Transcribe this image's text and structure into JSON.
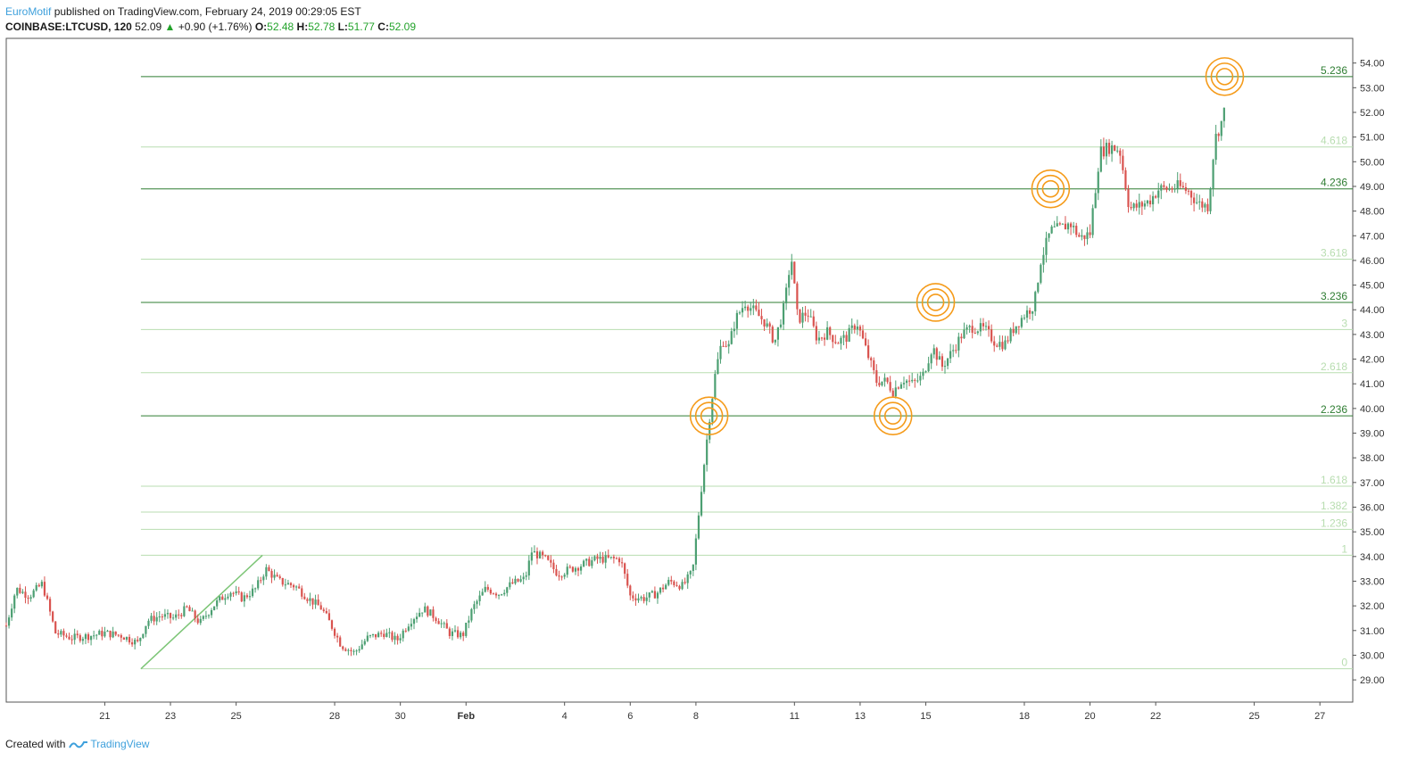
{
  "header": {
    "author": "EuroMotif",
    "published_text": " published on TradingView.com, February 24, 2019 00:29:05 EST"
  },
  "quote": {
    "symbol": "COINBASE:LTCUSD, 120",
    "last": "52.09",
    "arrow": "▲",
    "change": "+0.90 (+1.76%)",
    "o_label": "O:",
    "o": "52.48",
    "h_label": "H:",
    "h": "52.78",
    "l_label": "L:",
    "l": "51.77",
    "c_label": "C:",
    "c": "52.09"
  },
  "footer": {
    "created_with": "Created with",
    "brand": "TradingView"
  },
  "colors": {
    "up": "#4c9f72",
    "down": "#d9534f",
    "fib_main": "#2e7d32",
    "fib_light": "#b8ddb0",
    "target": "#f59b1a",
    "trend": "#7cc576"
  },
  "chart_data": {
    "type": "candlestick",
    "symbol": "LTCUSD",
    "interval": "120",
    "y_axis": {
      "range": [
        28.1,
        55.0
      ],
      "ticks": [
        "29.00",
        "30.00",
        "31.00",
        "32.00",
        "33.00",
        "34.00",
        "35.00",
        "36.00",
        "37.00",
        "38.00",
        "39.00",
        "40.00",
        "41.00",
        "42.00",
        "43.00",
        "44.00",
        "45.00",
        "46.00",
        "47.00",
        "48.00",
        "49.00",
        "50.00",
        "51.00",
        "52.00",
        "53.00",
        "54.00"
      ]
    },
    "x_axis": {
      "ticks": [
        {
          "label": "21",
          "day": 21
        },
        {
          "label": "23",
          "day": 23
        },
        {
          "label": "25",
          "day": 25
        },
        {
          "label": "28",
          "day": 28
        },
        {
          "label": "30",
          "day": 30
        },
        {
          "label": "Feb",
          "day": 32
        },
        {
          "label": "4",
          "day": 35
        },
        {
          "label": "6",
          "day": 37
        },
        {
          "label": "8",
          "day": 39
        },
        {
          "label": "11",
          "day": 42
        },
        {
          "label": "13",
          "day": 44
        },
        {
          "label": "15",
          "day": 46
        },
        {
          "label": "18",
          "day": 49
        },
        {
          "label": "20",
          "day": 51
        },
        {
          "label": "22",
          "day": 53
        },
        {
          "label": "25",
          "day": 56
        },
        {
          "label": "27",
          "day": 58
        }
      ]
    },
    "fibonacci": [
      {
        "label": "0",
        "price": 29.45,
        "strong": false
      },
      {
        "label": "1",
        "price": 34.05,
        "strong": false
      },
      {
        "label": "1.236",
        "price": 35.1,
        "strong": false
      },
      {
        "label": "1.382",
        "price": 35.8,
        "strong": false
      },
      {
        "label": "1.618",
        "price": 36.85,
        "strong": false
      },
      {
        "label": "2.236",
        "price": 39.7,
        "strong": true
      },
      {
        "label": "2.618",
        "price": 41.45,
        "strong": false
      },
      {
        "label": "3",
        "price": 43.2,
        "strong": false
      },
      {
        "label": "3.236",
        "price": 44.3,
        "strong": true
      },
      {
        "label": "3.618",
        "price": 46.05,
        "strong": false
      },
      {
        "label": "4.236",
        "price": 48.9,
        "strong": true
      },
      {
        "label": "4.618",
        "price": 50.6,
        "strong": false
      },
      {
        "label": "5.236",
        "price": 53.45,
        "strong": true
      }
    ],
    "trend_line": [
      {
        "day": 22.1,
        "price": 29.45
      },
      {
        "day": 25.8,
        "price": 34.05
      }
    ],
    "targets": [
      {
        "day": 39.4,
        "price": 39.7
      },
      {
        "day": 45.0,
        "price": 39.7
      },
      {
        "day": 46.3,
        "price": 44.3
      },
      {
        "day": 49.8,
        "price": 48.9
      },
      {
        "day": 55.1,
        "price": 53.45
      }
    ],
    "path": [
      [
        18.0,
        31.2
      ],
      [
        18.3,
        32.7
      ],
      [
        18.7,
        32.4
      ],
      [
        19.1,
        32.9
      ],
      [
        19.5,
        30.9
      ],
      [
        20.0,
        30.7
      ],
      [
        20.6,
        30.8
      ],
      [
        21.0,
        30.9
      ],
      [
        21.5,
        30.8
      ],
      [
        22.0,
        30.5
      ],
      [
        22.3,
        31.4
      ],
      [
        22.7,
        31.6
      ],
      [
        23.1,
        31.5
      ],
      [
        23.5,
        31.9
      ],
      [
        23.9,
        31.3
      ],
      [
        24.3,
        32.0
      ],
      [
        24.8,
        32.6
      ],
      [
        25.2,
        32.3
      ],
      [
        25.6,
        32.7
      ],
      [
        25.9,
        33.5
      ],
      [
        26.3,
        33.0
      ],
      [
        26.8,
        32.8
      ],
      [
        27.2,
        32.3
      ],
      [
        27.6,
        31.9
      ],
      [
        27.9,
        31.2
      ],
      [
        28.2,
        30.4
      ],
      [
        28.6,
        30.1
      ],
      [
        29.0,
        30.7
      ],
      [
        29.5,
        30.9
      ],
      [
        29.9,
        30.6
      ],
      [
        30.3,
        31.4
      ],
      [
        30.7,
        31.9
      ],
      [
        31.1,
        31.5
      ],
      [
        31.5,
        30.9
      ],
      [
        31.9,
        30.8
      ],
      [
        32.2,
        31.9
      ],
      [
        32.6,
        32.7
      ],
      [
        33.0,
        32.5
      ],
      [
        33.4,
        32.9
      ],
      [
        33.8,
        33.1
      ],
      [
        34.0,
        34.2
      ],
      [
        34.4,
        33.9
      ],
      [
        34.8,
        33.3
      ],
      [
        35.2,
        33.5
      ],
      [
        35.6,
        33.7
      ],
      [
        36.0,
        33.9
      ],
      [
        36.4,
        33.9
      ],
      [
        36.7,
        33.9
      ],
      [
        37.0,
        32.4
      ],
      [
        37.4,
        32.3
      ],
      [
        37.8,
        32.5
      ],
      [
        38.2,
        33.0
      ],
      [
        38.6,
        32.8
      ],
      [
        38.9,
        33.4
      ],
      [
        39.2,
        37.2
      ],
      [
        39.4,
        39.5
      ],
      [
        39.6,
        41.5
      ],
      [
        39.8,
        42.8
      ],
      [
        40.0,
        42.5
      ],
      [
        40.2,
        43.6
      ],
      [
        40.5,
        44.3
      ],
      [
        40.8,
        43.9
      ],
      [
        41.1,
        43.5
      ],
      [
        41.4,
        42.7
      ],
      [
        41.7,
        44.2
      ],
      [
        41.9,
        46.2
      ],
      [
        42.1,
        43.6
      ],
      [
        42.4,
        43.9
      ],
      [
        42.7,
        42.8
      ],
      [
        43.0,
        43.1
      ],
      [
        43.3,
        42.7
      ],
      [
        43.6,
        42.9
      ],
      [
        43.9,
        43.5
      ],
      [
        44.2,
        42.3
      ],
      [
        44.5,
        41.1
      ],
      [
        44.8,
        41.1
      ],
      [
        45.0,
        40.7
      ],
      [
        45.3,
        41.2
      ],
      [
        45.6,
        41.0
      ],
      [
        45.9,
        41.3
      ],
      [
        46.2,
        42.5
      ],
      [
        46.5,
        41.7
      ],
      [
        46.8,
        42.3
      ],
      [
        47.1,
        43.0
      ],
      [
        47.4,
        43.3
      ],
      [
        47.8,
        43.2
      ],
      [
        48.1,
        42.7
      ],
      [
        48.4,
        42.6
      ],
      [
        48.7,
        43.3
      ],
      [
        49.0,
        43.8
      ],
      [
        49.3,
        44.2
      ],
      [
        49.5,
        46.0
      ],
      [
        49.8,
        47.2
      ],
      [
        50.1,
        47.3
      ],
      [
        50.4,
        47.5
      ],
      [
        50.7,
        46.9
      ],
      [
        51.0,
        47.1
      ],
      [
        51.3,
        50.4
      ],
      [
        51.6,
        50.6
      ],
      [
        51.9,
        50.5
      ],
      [
        52.2,
        48.1
      ],
      [
        52.5,
        48.2
      ],
      [
        52.8,
        48.4
      ],
      [
        53.1,
        48.9
      ],
      [
        53.4,
        48.9
      ],
      [
        53.7,
        49.0
      ],
      [
        54.0,
        48.8
      ],
      [
        54.3,
        48.3
      ],
      [
        54.6,
        48.2
      ],
      [
        54.8,
        50.9
      ],
      [
        55.0,
        51.6
      ],
      [
        55.1,
        52.09
      ]
    ]
  }
}
